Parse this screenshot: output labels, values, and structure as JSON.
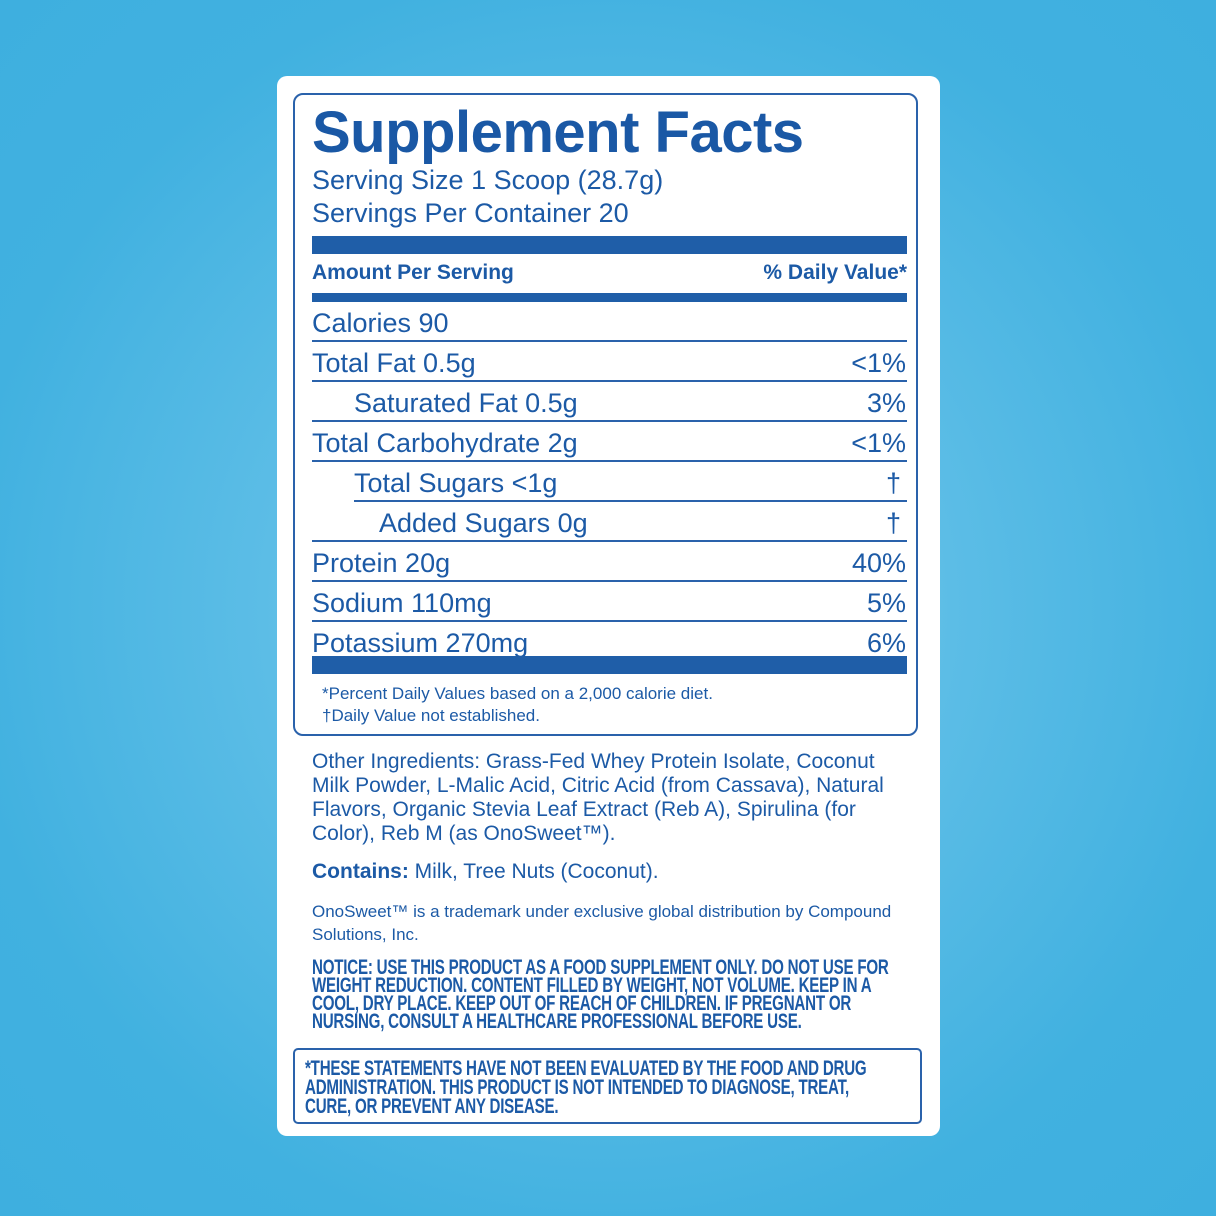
{
  "title": "Supplement Facts",
  "serving_size": "Serving Size 1 Scoop (28.7g)",
  "servings_per_container": "Servings Per Container 20",
  "header": {
    "amount": "Amount Per Serving",
    "dv": "% Daily Value*"
  },
  "rows": [
    {
      "label": "Calories 90",
      "dv": ""
    },
    {
      "label": "Total Fat 0.5g",
      "dv": "<1%"
    },
    {
      "label": "Saturated Fat 0.5g",
      "dv": "3%"
    },
    {
      "label": "Total Carbohydrate 2g",
      "dv": "<1%"
    },
    {
      "label": "Total Sugars <1g",
      "dv": "†"
    },
    {
      "label": "Added Sugars 0g",
      "dv": "†"
    },
    {
      "label": "Protein 20g",
      "dv": "40%"
    },
    {
      "label": "Sodium 110mg",
      "dv": "5%"
    },
    {
      "label": "Potassium 270mg",
      "dv": "6%"
    }
  ],
  "footnotes": [
    "*Percent Daily Values based on a 2,000 calorie diet.",
    "†Daily Value not established."
  ],
  "ingredients": "Other Ingredients: Grass-Fed Whey Protein Isolate, Coconut Milk Powder, L-Malic Acid, Citric Acid (from Cassava), Natural Flavors, Organic Stevia Leaf Extract (Reb A), Spirulina (for Color), Reb M (as OnoSweet™).",
  "contains": {
    "label": "Contains:",
    "value": " Milk, Tree Nuts (Coconut)."
  },
  "trademark": "OnoSweet™ is a trademark under exclusive global distribution by Compound Solutions, Inc.",
  "notice": "NOTICE: USE THIS PRODUCT AS A FOOD SUPPLEMENT ONLY. DO NOT USE FOR WEIGHT REDUCTION. CONTENT FILLED BY WEIGHT, NOT VOLUME. KEEP IN A COOL, DRY PLACE. KEEP OUT OF REACH OF CHILDREN. IF PREGNANT OR NURSING, CONSULT A HEALTHCARE PROFESSIONAL BEFORE USE.",
  "disclaimer": "*THESE STATEMENTS HAVE NOT BEEN EVALUATED BY THE FOOD AND DRUG ADMINISTRATION. THIS PRODUCT IS NOT INTENDED TO DIAGNOSE, TREAT, CURE, OR PREVENT ANY DISEASE.",
  "colors": {
    "text": "#1c5aa6",
    "background": "#41b1e0",
    "label": "#ffffff"
  }
}
